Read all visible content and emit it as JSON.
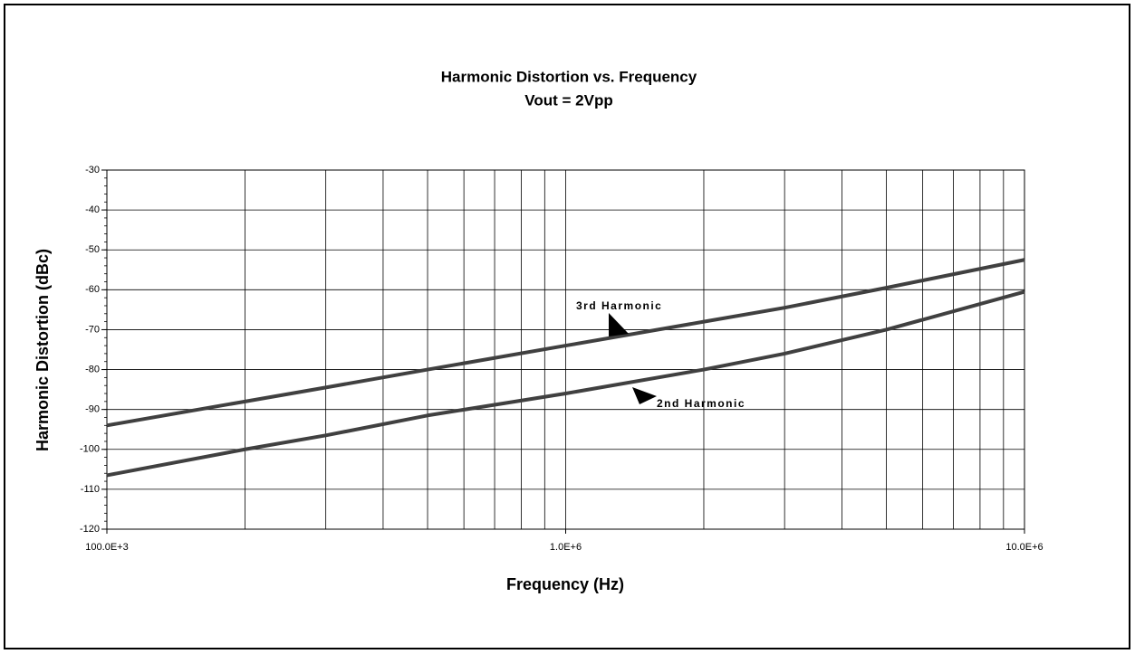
{
  "chart_data": {
    "type": "line",
    "title": "Harmonic Distortion vs. Frequency",
    "subtitle": "Vout = 2Vpp",
    "x_label": "Frequency (Hz)",
    "y_label": "Harmonic Distortion (dBc)",
    "x": [
      100000,
      200000,
      300000,
      500000,
      1000000,
      2000000,
      3000000,
      5000000,
      10000000
    ],
    "series": [
      {
        "name": "3rd Harmonic",
        "color": "#404040",
        "values": [
          -94,
          -88,
          -84.5,
          -80,
          -74,
          -68,
          -64.5,
          -59.5,
          -52.5
        ]
      },
      {
        "name": "2nd Harmonic",
        "color": "#404040",
        "values": [
          -106.5,
          -100,
          -96.5,
          -91.5,
          -86,
          -80,
          -76,
          -70,
          -60.5
        ]
      }
    ],
    "xlim": [
      100000,
      10000000
    ],
    "xticks": [
      {
        "value": 100000,
        "label": "100.0E+3"
      },
      {
        "value": 1000000,
        "label": "1.0E+6"
      },
      {
        "value": 10000000,
        "label": "10.0E+6"
      }
    ],
    "ylim": [
      -120,
      -30
    ],
    "yticks": [
      -120,
      -110,
      -100,
      -90,
      -80,
      -70,
      -60,
      -50,
      -40,
      -30
    ],
    "xscale": "log",
    "grid": true
  }
}
